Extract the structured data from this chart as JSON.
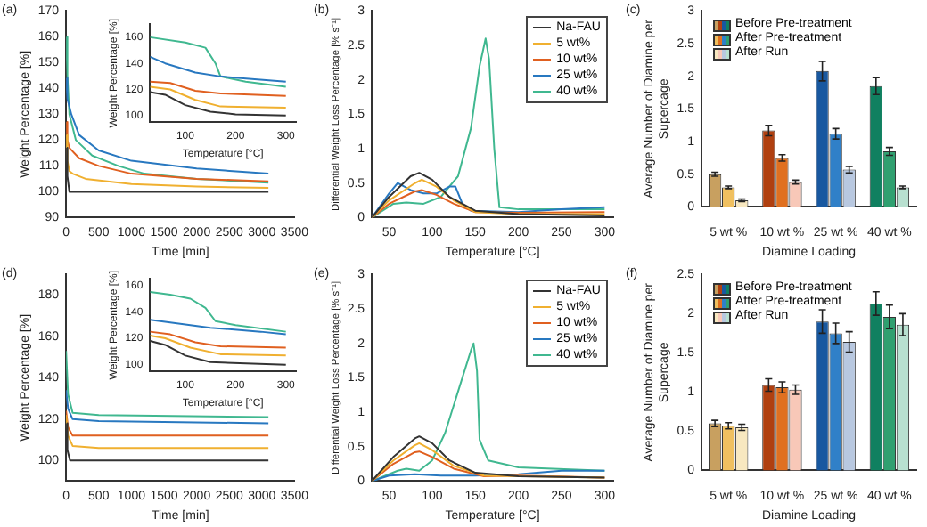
{
  "chart_data": [
    {
      "type": "line",
      "title": "(a)",
      "xlabel": "Time [min]",
      "ylabel": "Weight Percentage [%]",
      "xlim": [
        0,
        3500
      ],
      "xticks": [
        0,
        500,
        1000,
        1500,
        2000,
        2500,
        3000,
        3500
      ],
      "ylim": [
        90,
        170
      ],
      "yticks": [
        90,
        100,
        110,
        120,
        130,
        140,
        150,
        160,
        170
      ],
      "marker": "none",
      "series": [
        {
          "color": "#333333",
          "x": [
            0,
            20,
            50,
            100,
            500,
            1000,
            2000,
            3100
          ],
          "values": [
            117,
            106,
            100,
            100,
            100,
            100,
            100,
            100
          ]
        },
        {
          "color": "#f0b030",
          "x": [
            0,
            20,
            50,
            100,
            300,
            1000,
            2000,
            3100
          ],
          "values": [
            122,
            112,
            108,
            107,
            105,
            103,
            102,
            101.5
          ]
        },
        {
          "color": "#e06020",
          "x": [
            0,
            20,
            50,
            200,
            500,
            1000,
            2000,
            3100
          ],
          "values": [
            127,
            120,
            117,
            113,
            110,
            107,
            105,
            104
          ]
        },
        {
          "color": "#2878c0",
          "x": [
            0,
            20,
            80,
            200,
            500,
            1000,
            2000,
            3100
          ],
          "values": [
            144,
            136,
            130,
            122,
            116,
            112,
            109,
            107
          ]
        },
        {
          "color": "#40b890",
          "x": [
            0,
            20,
            50,
            150,
            400,
            800,
            1200,
            2000,
            3100
          ],
          "values": [
            160,
            145,
            130,
            120,
            114,
            110,
            107,
            105,
            103.5
          ]
        }
      ]
    },
    {
      "type": "line",
      "xlabel": "Temperature [°C]",
      "ylabel": "Weight Percentage [%]",
      "xlim": [
        30,
        320
      ],
      "xticks": [
        100,
        200,
        300
      ],
      "ylim": [
        95,
        170
      ],
      "yticks": [
        100,
        120,
        140,
        160
      ],
      "marker": "none",
      "series": [
        {
          "color": "#333333",
          "x": [
            30,
            60,
            100,
            150,
            200,
            300
          ],
          "values": [
            118,
            116,
            108,
            103,
            101,
            100
          ]
        },
        {
          "color": "#f0b030",
          "x": [
            30,
            70,
            120,
            170,
            300
          ],
          "values": [
            122,
            120,
            112,
            107,
            106
          ]
        },
        {
          "color": "#e06020",
          "x": [
            30,
            70,
            120,
            170,
            300
          ],
          "values": [
            126,
            125,
            119,
            117,
            115
          ]
        },
        {
          "color": "#2878c0",
          "x": [
            30,
            60,
            120,
            170,
            300
          ],
          "values": [
            145,
            140,
            133,
            130,
            126
          ]
        },
        {
          "color": "#40b890",
          "x": [
            30,
            100,
            140,
            160,
            170,
            220,
            300
          ],
          "values": [
            160,
            156,
            152,
            140,
            130,
            126,
            122
          ]
        }
      ]
    },
    {
      "type": "line",
      "title": "(b)",
      "xlabel": "Temperature [°C]",
      "ylabel": "Differential Weight Loss Percentage [% s⁻¹]",
      "xlim": [
        30,
        310
      ],
      "xticks": [
        50,
        100,
        150,
        200,
        250,
        300
      ],
      "ylim": [
        0,
        3
      ],
      "yticks": [
        0,
        0.5,
        1,
        1.5,
        2,
        2.5,
        3
      ],
      "marker": "none",
      "legend": "top right",
      "series": [
        {
          "name": "Na-FAU",
          "color": "#333333",
          "x": [
            30,
            50,
            75,
            85,
            100,
            120,
            150,
            200,
            300
          ],
          "values": [
            0,
            0.3,
            0.6,
            0.65,
            0.55,
            0.3,
            0.1,
            0.05,
            0.03
          ]
        },
        {
          "name": "5 wt%",
          "color": "#f0b030",
          "x": [
            30,
            50,
            80,
            88,
            105,
            125,
            150,
            200,
            300
          ],
          "values": [
            0,
            0.25,
            0.5,
            0.55,
            0.45,
            0.25,
            0.08,
            0.05,
            0.05
          ]
        },
        {
          "name": "10 wt%",
          "color": "#e06020",
          "x": [
            30,
            50,
            80,
            88,
            105,
            125,
            150,
            200,
            300
          ],
          "values": [
            0,
            0.2,
            0.38,
            0.4,
            0.33,
            0.2,
            0.08,
            0.07,
            0.08
          ]
        },
        {
          "name": "25 wt%",
          "color": "#2878c0",
          "x": [
            30,
            50,
            60,
            75,
            90,
            105,
            120,
            127,
            135,
            145,
            200,
            250,
            300
          ],
          "values": [
            0,
            0.35,
            0.5,
            0.4,
            0.35,
            0.35,
            0.45,
            0.45,
            0.2,
            0.1,
            0.08,
            0.12,
            0.15
          ]
        },
        {
          "name": "40 wt%",
          "color": "#40b890",
          "x": [
            30,
            55,
            70,
            90,
            110,
            130,
            145,
            155,
            162,
            166,
            172,
            178,
            200,
            300
          ],
          "values": [
            0,
            0.2,
            0.22,
            0.2,
            0.3,
            0.6,
            1.3,
            2.2,
            2.6,
            2.3,
            1,
            0.15,
            0.12,
            0.12
          ]
        }
      ]
    },
    {
      "type": "bar",
      "title": "(c)",
      "xlabel": "Diamine Loading",
      "ylabel": "Average Number of Diamine per Supercage",
      "categories": [
        "5 wt %",
        "10 wt %",
        "25 wt %",
        "40 wt %"
      ],
      "ylim": [
        0,
        3
      ],
      "yticks": [
        0,
        0.5,
        1,
        1.5,
        2,
        2.5,
        3
      ],
      "legend": "top left",
      "series": [
        {
          "name": "Before Pre-treatment",
          "colors": [
            "#c8a060",
            "#b04010",
            "#1858a0",
            "#108060"
          ],
          "values": [
            0.5,
            1.17,
            2.08,
            1.85
          ],
          "errors": [
            0.03,
            0.08,
            0.15,
            0.13
          ]
        },
        {
          "name": "After Pre-treatment",
          "colors": [
            "#f0c060",
            "#e07020",
            "#3080c8",
            "#30a070"
          ],
          "values": [
            0.3,
            0.75,
            1.12,
            0.85
          ],
          "errors": [
            0.02,
            0.05,
            0.08,
            0.06
          ]
        },
        {
          "name": "After Run",
          "colors": [
            "#f8e8c0",
            "#f8c8b8",
            "#b8c8e0",
            "#b8e0d0"
          ],
          "values": [
            0.1,
            0.38,
            0.57,
            0.3
          ],
          "errors": [
            0.02,
            0.03,
            0.05,
            0.02
          ]
        }
      ]
    },
    {
      "type": "line",
      "title": "(d)",
      "xlabel": "Time [min]",
      "ylabel": "Weight Percentage [%]",
      "xlim": [
        0,
        3500
      ],
      "xticks": [
        0,
        500,
        1000,
        1500,
        2000,
        2500,
        3000,
        3500
      ],
      "ylim": [
        90,
        190
      ],
      "yticks": [
        100,
        120,
        140,
        160,
        180
      ],
      "marker": "none",
      "series": [
        {
          "color": "#333333",
          "x": [
            0,
            20,
            60,
            500,
            3100
          ],
          "values": [
            118,
            105,
            100,
            100,
            100
          ]
        },
        {
          "color": "#f0b030",
          "x": [
            0,
            30,
            100,
            500,
            3100
          ],
          "values": [
            122,
            112,
            107,
            106,
            106
          ]
        },
        {
          "color": "#e06020",
          "x": [
            0,
            30,
            100,
            500,
            3100
          ],
          "values": [
            124,
            116,
            112,
            112,
            112
          ]
        },
        {
          "color": "#2878c0",
          "x": [
            0,
            30,
            100,
            500,
            3100
          ],
          "values": [
            134,
            125,
            120,
            119,
            118
          ]
        },
        {
          "color": "#40b890",
          "x": [
            0,
            30,
            100,
            500,
            3100
          ],
          "values": [
            153,
            132,
            123,
            122,
            121
          ]
        }
      ]
    },
    {
      "type": "line",
      "xlabel": "Temperature [°C]",
      "ylabel": "Weight Percentage [%]",
      "xlim": [
        30,
        320
      ],
      "xticks": [
        100,
        200,
        300
      ],
      "ylim": [
        95,
        165
      ],
      "yticks": [
        100,
        120,
        140,
        160
      ],
      "marker": "none",
      "series": [
        {
          "color": "#333333",
          "x": [
            30,
            60,
            100,
            150,
            300
          ],
          "values": [
            118,
            115,
            107,
            102,
            100
          ]
        },
        {
          "color": "#f0b030",
          "x": [
            30,
            60,
            110,
            170,
            300
          ],
          "values": [
            122,
            120,
            113,
            108,
            107
          ]
        },
        {
          "color": "#e06020",
          "x": [
            30,
            70,
            120,
            170,
            300
          ],
          "values": [
            125,
            123,
            117,
            114,
            113
          ]
        },
        {
          "color": "#2878c0",
          "x": [
            30,
            70,
            150,
            250,
            300
          ],
          "values": [
            134,
            132,
            128,
            125,
            123
          ]
        },
        {
          "color": "#40b890",
          "x": [
            30,
            70,
            110,
            140,
            160,
            200,
            300
          ],
          "values": [
            155,
            153,
            150,
            143,
            133,
            130,
            125
          ]
        }
      ]
    },
    {
      "type": "line",
      "title": "(e)",
      "xlabel": "Temperature [°C]",
      "ylabel": "Differential Weight Loss Percentage [% s⁻¹]",
      "xlim": [
        30,
        310
      ],
      "xticks": [
        50,
        100,
        150,
        200,
        250,
        300
      ],
      "ylim": [
        0,
        3
      ],
      "yticks": [
        0,
        0.5,
        1,
        1.5,
        2,
        2.5,
        3
      ],
      "marker": "none",
      "legend": "top right",
      "series": [
        {
          "name": "Na-FAU",
          "color": "#333333",
          "x": [
            30,
            55,
            80,
            85,
            100,
            120,
            150,
            200,
            300
          ],
          "values": [
            0,
            0.35,
            0.62,
            0.65,
            0.55,
            0.3,
            0.12,
            0.07,
            0.05
          ]
        },
        {
          "name": "5 wt%",
          "color": "#f0b030",
          "x": [
            30,
            55,
            80,
            85,
            100,
            125,
            160,
            300
          ],
          "values": [
            0,
            0.3,
            0.52,
            0.55,
            0.45,
            0.22,
            0.08,
            0.05
          ]
        },
        {
          "name": "10 wt%",
          "color": "#e06020",
          "x": [
            30,
            55,
            80,
            85,
            100,
            125,
            160,
            200,
            300
          ],
          "values": [
            0,
            0.25,
            0.42,
            0.43,
            0.35,
            0.18,
            0.07,
            0.08,
            0.05
          ]
        },
        {
          "name": "25 wt%",
          "color": "#2878c0",
          "x": [
            30,
            50,
            80,
            110,
            150,
            200,
            250,
            300
          ],
          "values": [
            0,
            0.08,
            0.1,
            0.08,
            0.08,
            0.1,
            0.15,
            0.15
          ]
        },
        {
          "name": "40 wt%",
          "color": "#40b890",
          "x": [
            30,
            60,
            70,
            85,
            100,
            115,
            130,
            145,
            148,
            152,
            155,
            165,
            200,
            300
          ],
          "values": [
            0,
            0.15,
            0.18,
            0.15,
            0.3,
            0.7,
            1.3,
            1.9,
            2,
            1.6,
            0.6,
            0.3,
            0.2,
            0.15
          ]
        }
      ]
    },
    {
      "type": "bar",
      "title": "(f)",
      "xlabel": "Diamine Loading",
      "ylabel": "Average Number of Diamine per Supercage",
      "categories": [
        "5 wt %",
        "10 wt %",
        "25 wt %",
        "40 wt %"
      ],
      "ylim": [
        0,
        2.5
      ],
      "yticks": [
        0,
        0.5,
        1,
        1.5,
        2,
        2.5
      ],
      "legend": "top left",
      "series": [
        {
          "name": "Before Pre-treatment",
          "colors": [
            "#c8a060",
            "#b04010",
            "#1858a0",
            "#108060"
          ],
          "values": [
            0.6,
            1.09,
            1.9,
            2.13
          ],
          "errors": [
            0.04,
            0.08,
            0.15,
            0.15
          ]
        },
        {
          "name": "After Pre-treatment",
          "colors": [
            "#f0c060",
            "#e07020",
            "#3080c8",
            "#30a070"
          ],
          "values": [
            0.57,
            1.06,
            1.75,
            1.96
          ],
          "errors": [
            0.04,
            0.07,
            0.13,
            0.15
          ]
        },
        {
          "name": "After Run",
          "colors": [
            "#f8e8c0",
            "#f8c8b8",
            "#b8c8e0",
            "#b8e0d0"
          ],
          "values": [
            0.55,
            1.03,
            1.64,
            1.86
          ],
          "errors": [
            0.04,
            0.06,
            0.13,
            0.14
          ]
        }
      ]
    }
  ]
}
